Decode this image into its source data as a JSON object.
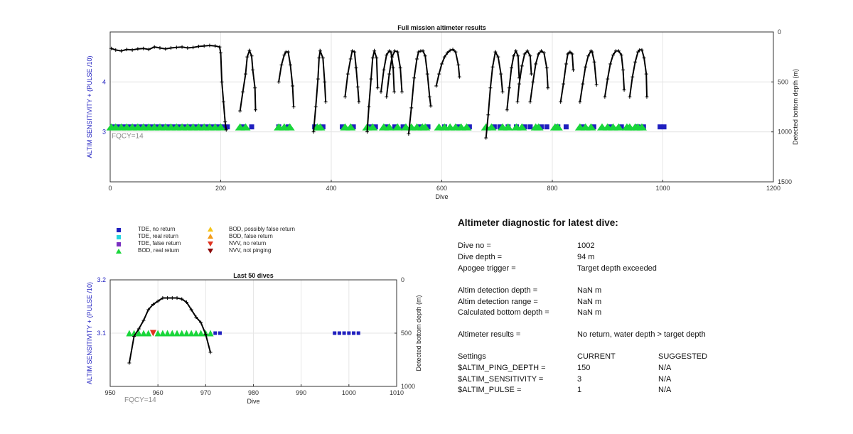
{
  "colors": {
    "tde_no_return": "#1f1fbf",
    "tde_real_return": "#25d6e0",
    "tde_false_return": "#7a2fc0",
    "bod_real_return": "#19d63a",
    "bod_possibly_false": "#f5c518",
    "bod_false_return": "#f39c1a",
    "nvv_no_return": "#e0321e",
    "nvv_not_pinging": "#8b0a0a",
    "left_axis_label": "#2020c0",
    "fqcy_text": "#8a8a8a"
  },
  "chart_data": [
    {
      "type": "scatter",
      "title": "Full mission altimeter results",
      "xlabel": "Dive",
      "ylabel_left": "ALTIM SENSITIVITY + (PULSE /10)",
      "ylabel_right": "Detected bottom depth (m)",
      "annotation": "FQCY=14",
      "xlim": [
        0,
        1200
      ],
      "ylim_left": [
        2.0,
        5.0
      ],
      "ylim_right": [
        1500,
        0
      ],
      "xticks": [
        "0",
        "200",
        "400",
        "600",
        "800",
        "1000",
        "1200"
      ],
      "yticks_left": [
        "3",
        "4"
      ],
      "yticks_right": [
        "0",
        "500",
        "1000",
        "1500"
      ],
      "grid": true,
      "series": [
        {
          "name": "TDE, no return",
          "marker": "square",
          "y_axis": "left",
          "x": [
            5,
            15,
            25,
            35,
            45,
            55,
            65,
            75,
            85,
            95,
            105,
            115,
            125,
            135,
            145,
            155,
            165,
            175,
            185,
            195,
            205,
            212,
            240,
            256,
            305,
            322,
            370,
            385,
            420,
            440,
            470,
            480,
            500,
            515,
            530,
            560,
            575,
            605,
            630,
            650,
            695,
            705,
            720,
            735,
            750,
            760,
            780,
            790,
            810,
            825,
            855,
            875,
            905,
            925,
            955,
            965,
            995,
            1002
          ],
          "y": [
            3.1,
            3.1,
            3.1,
            3.1,
            3.1,
            3.1,
            3.1,
            3.1,
            3.1,
            3.1,
            3.1,
            3.1,
            3.1,
            3.1,
            3.1,
            3.1,
            3.1,
            3.1,
            3.1,
            3.1,
            3.1,
            3.1,
            3.1,
            3.1,
            3.1,
            3.1,
            3.1,
            3.1,
            3.1,
            3.1,
            3.1,
            3.1,
            3.1,
            3.1,
            3.1,
            3.1,
            3.1,
            3.1,
            3.1,
            3.1,
            3.1,
            3.1,
            3.1,
            3.1,
            3.1,
            3.1,
            3.1,
            3.1,
            3.1,
            3.1,
            3.1,
            3.1,
            3.1,
            3.1,
            3.1,
            3.1,
            3.1,
            3.1
          ]
        },
        {
          "name": "BOD, real return",
          "marker": "triangle",
          "y_axis": "left",
          "x": [
            2,
            10,
            20,
            30,
            40,
            50,
            60,
            70,
            80,
            90,
            100,
            110,
            120,
            130,
            140,
            150,
            160,
            170,
            180,
            190,
            200,
            235,
            245,
            305,
            315,
            325,
            375,
            380,
            425,
            435,
            465,
            475,
            495,
            505,
            520,
            535,
            545,
            555,
            565,
            570,
            595,
            605,
            615,
            625,
            635,
            645,
            680,
            690,
            710,
            720,
            735,
            745,
            770,
            775,
            805,
            810,
            850,
            860,
            870,
            890,
            900,
            910,
            920,
            935,
            940,
            950,
            955,
            962
          ],
          "y": [
            3.1,
            3.1,
            3.1,
            3.1,
            3.1,
            3.1,
            3.1,
            3.1,
            3.1,
            3.1,
            3.1,
            3.1,
            3.1,
            3.1,
            3.1,
            3.1,
            3.1,
            3.1,
            3.1,
            3.1,
            3.1,
            3.1,
            3.1,
            3.1,
            3.1,
            3.1,
            3.1,
            3.1,
            3.1,
            3.1,
            3.1,
            3.1,
            3.1,
            3.1,
            3.1,
            3.1,
            3.1,
            3.1,
            3.1,
            3.1,
            3.1,
            3.1,
            3.1,
            3.1,
            3.1,
            3.1,
            3.1,
            3.1,
            3.1,
            3.1,
            3.1,
            3.1,
            3.1,
            3.1,
            3.1,
            3.1,
            3.1,
            3.1,
            3.1,
            3.1,
            3.1,
            3.1,
            3.1,
            3.1,
            3.1,
            3.1,
            3.1,
            3.1
          ]
        },
        {
          "name": "Detected bottom depth",
          "marker": "line-plus",
          "y_axis": "right",
          "segments": [
            {
              "x": [
                2,
                10,
                20,
                30,
                40,
                50,
                60,
                70,
                80,
                90,
                100,
                110,
                120,
                130,
                140,
                150,
                160,
                170,
                180,
                190,
                198,
                200
              ],
              "y": [
                165,
                180,
                190,
                175,
                180,
                170,
                165,
                175,
                150,
                160,
                170,
                160,
                155,
                150,
                160,
                155,
                145,
                140,
                135,
                140,
                150,
                210
              ]
            },
            {
              "x": [
                200,
                202,
                205,
                208,
                210
              ],
              "y": [
                210,
                500,
                700,
                900,
                980
              ]
            },
            {
              "x": [
                235,
                240,
                245,
                248,
                252,
                256,
                258,
                262,
                263
              ],
              "y": [
                790,
                600,
                420,
                250,
                185,
                240,
                380,
                560,
                780
              ]
            },
            {
              "x": [
                305,
                310,
                315,
                318,
                322,
                326,
                330,
                332
              ],
              "y": [
                500,
                330,
                230,
                200,
                200,
                330,
                540,
                750
              ]
            },
            {
              "x": [
                368,
                372,
                376,
                378,
                380,
                385,
                388,
                390
              ],
              "y": [
                1000,
                750,
                470,
                260,
                190,
                260,
                500,
                700
              ]
            },
            {
              "x": [
                425,
                430,
                435,
                438,
                442,
                445,
                448,
                450
              ],
              "y": [
                650,
                420,
                270,
                190,
                200,
                360,
                550,
                700
              ]
            },
            {
              "x": [
                465,
                468,
                472,
                475,
                478,
                482,
                484
              ],
              "y": [
                1000,
                750,
                470,
                260,
                190,
                260,
                560
              ]
            },
            {
              "x": [
                490,
                495,
                500,
                505,
                508,
                512,
                514
              ],
              "y": [
                600,
                380,
                230,
                190,
                200,
                360,
                600
              ]
            },
            {
              "x": [
                500,
                505,
                510,
                515,
                520,
                525,
                528
              ],
              "y": [
                650,
                420,
                250,
                190,
                200,
                360,
                600
              ]
            },
            {
              "x": [
                540,
                545,
                550,
                555,
                558,
                562,
                566,
                570,
                574,
                578,
                580
              ],
              "y": [
                1020,
                760,
                460,
                270,
                200,
                190,
                190,
                240,
                420,
                650,
                740
              ]
            },
            {
              "x": [
                590,
                595,
                600,
                605,
                610,
                615,
                620,
                625,
                630,
                632
              ],
              "y": [
                540,
                420,
                320,
                250,
                210,
                185,
                175,
                200,
                330,
                450
              ]
            },
            {
              "x": [
                680,
                684,
                688,
                692,
                697,
                702,
                707,
                710
              ],
              "y": [
                1060,
                830,
                560,
                350,
                200,
                250,
                420,
                600
              ]
            },
            {
              "x": [
                718,
                722,
                726,
                730,
                734,
                738,
                740
              ],
              "y": [
                780,
                560,
                360,
                240,
                190,
                240,
                460
              ]
            },
            {
              "x": [
                737,
                740,
                745,
                750,
                755,
                760,
                762
              ],
              "y": [
                700,
                520,
                340,
                220,
                190,
                240,
                420
              ]
            },
            {
              "x": [
                760,
                765,
                770,
                775,
                780,
                785,
                790,
                792
              ],
              "y": [
                700,
                500,
                320,
                220,
                190,
                210,
                360,
                560
              ]
            },
            {
              "x": [
                815,
                820,
                825,
                828,
                832,
                836,
                838
              ],
              "y": [
                700,
                520,
                320,
                220,
                200,
                220,
                380
              ]
            },
            {
              "x": [
                850,
                855,
                860,
                865,
                870,
                872,
                876,
                880
              ],
              "y": [
                700,
                520,
                350,
                240,
                190,
                200,
                300,
                530
              ]
            },
            {
              "x": [
                895,
                900,
                905,
                910,
                915,
                920,
                925,
                928,
                930
              ],
              "y": [
                650,
                470,
                320,
                230,
                190,
                190,
                230,
                380,
                580
              ]
            },
            {
              "x": [
                940,
                945,
                950,
                955,
                958,
                962,
                966,
                970,
                971
              ],
              "y": [
                650,
                450,
                300,
                200,
                180,
                180,
                260,
                420,
                650
              ]
            }
          ]
        }
      ]
    },
    {
      "type": "scatter",
      "title": "Last 50 dives",
      "xlabel": "Dive",
      "ylabel_left": "ALTIM SENSITIVITY + (PULSE /10)",
      "ylabel_right": "Detected bottom depth (m)",
      "annotation": "FQCY=14",
      "xlim": [
        950,
        1010
      ],
      "ylim_left": [
        3.0,
        3.2
      ],
      "ylim_right": [
        1000,
        0
      ],
      "xticks": [
        "950",
        "960",
        "970",
        "980",
        "990",
        "1000",
        "1010"
      ],
      "yticks_left": [
        "3.1",
        "3.2"
      ],
      "yticks_right": [
        "0",
        "500",
        "1000"
      ],
      "grid": true,
      "series": [
        {
          "name": "TDE, no return",
          "marker": "square",
          "y_axis": "left",
          "x": [
            972,
            973,
            997,
            998,
            999,
            1000,
            1001,
            1002
          ],
          "y": [
            3.1,
            3.1,
            3.1,
            3.1,
            3.1,
            3.1,
            3.1,
            3.1
          ]
        },
        {
          "name": "BOD, real return",
          "marker": "triangle",
          "y_axis": "left",
          "x": [
            954,
            955,
            956,
            957,
            958,
            960,
            961,
            962,
            963,
            964,
            965,
            966,
            967,
            968,
            969,
            970,
            971
          ],
          "y": [
            3.1,
            3.1,
            3.1,
            3.1,
            3.1,
            3.1,
            3.1,
            3.1,
            3.1,
            3.1,
            3.1,
            3.1,
            3.1,
            3.1,
            3.1,
            3.1,
            3.1
          ]
        },
        {
          "name": "NVV, no return",
          "marker": "triangle-down",
          "y_axis": "left",
          "x": [
            959
          ],
          "y": [
            3.1
          ]
        },
        {
          "name": "Detected bottom depth",
          "marker": "line-plus",
          "y_axis": "right",
          "x": [
            954,
            955,
            956,
            957,
            958,
            959,
            960,
            961,
            962,
            963,
            964,
            965,
            966,
            967,
            968,
            969,
            970,
            971
          ],
          "y": [
            780,
            530,
            460,
            380,
            280,
            230,
            200,
            170,
            170,
            170,
            170,
            180,
            210,
            280,
            350,
            400,
            510,
            680
          ]
        }
      ]
    }
  ],
  "legend": {
    "items": [
      {
        "label": "TDE, no return",
        "symbol": "square",
        "color_key": "tde_no_return"
      },
      {
        "label": "TDE, real return",
        "symbol": "square",
        "color_key": "tde_real_return"
      },
      {
        "label": "TDE, false return",
        "symbol": "square",
        "color_key": "tde_false_return"
      },
      {
        "label": "BOD, real return",
        "symbol": "triangle",
        "color_key": "bod_real_return"
      },
      {
        "label": "BOD, possibly false return",
        "symbol": "triangle",
        "color_key": "bod_possibly_false"
      },
      {
        "label": "BOD, false return",
        "symbol": "triangle",
        "color_key": "bod_false_return"
      },
      {
        "label": "NVV, no return",
        "symbol": "triangle-down",
        "color_key": "nvv_no_return"
      },
      {
        "label": "NVV, not pinging",
        "symbol": "triangle-down",
        "color_key": "nvv_not_pinging"
      }
    ]
  },
  "diagnostic": {
    "title": "Altimeter diagnostic for latest dive:",
    "rows": [
      {
        "label": "Dive no =",
        "value": "1002"
      },
      {
        "label": "Dive depth =",
        "value": "94 m"
      },
      {
        "label": "Apogee trigger =",
        "value": "Target depth exceeded"
      },
      {
        "label": "Altim detection depth =",
        "value": "NaN m"
      },
      {
        "label": "Altim detection range =",
        "value": "NaN m"
      },
      {
        "label": "Calculated bottom depth =",
        "value": "NaN m"
      },
      {
        "label": "Altimeter results =",
        "value": "No return, water depth > target depth"
      }
    ],
    "settings": {
      "header": {
        "label": "Settings",
        "current": "CURRENT",
        "suggested": "SUGGESTED"
      },
      "rows": [
        {
          "label": "$ALTIM_PING_DEPTH =",
          "current": "150",
          "suggested": "N/A"
        },
        {
          "label": "$ALTIM_SENSITIVITY =",
          "current": "3",
          "suggested": "N/A"
        },
        {
          "label": "$ALTIM_PULSE =",
          "current": "1",
          "suggested": "N/A"
        }
      ]
    }
  }
}
